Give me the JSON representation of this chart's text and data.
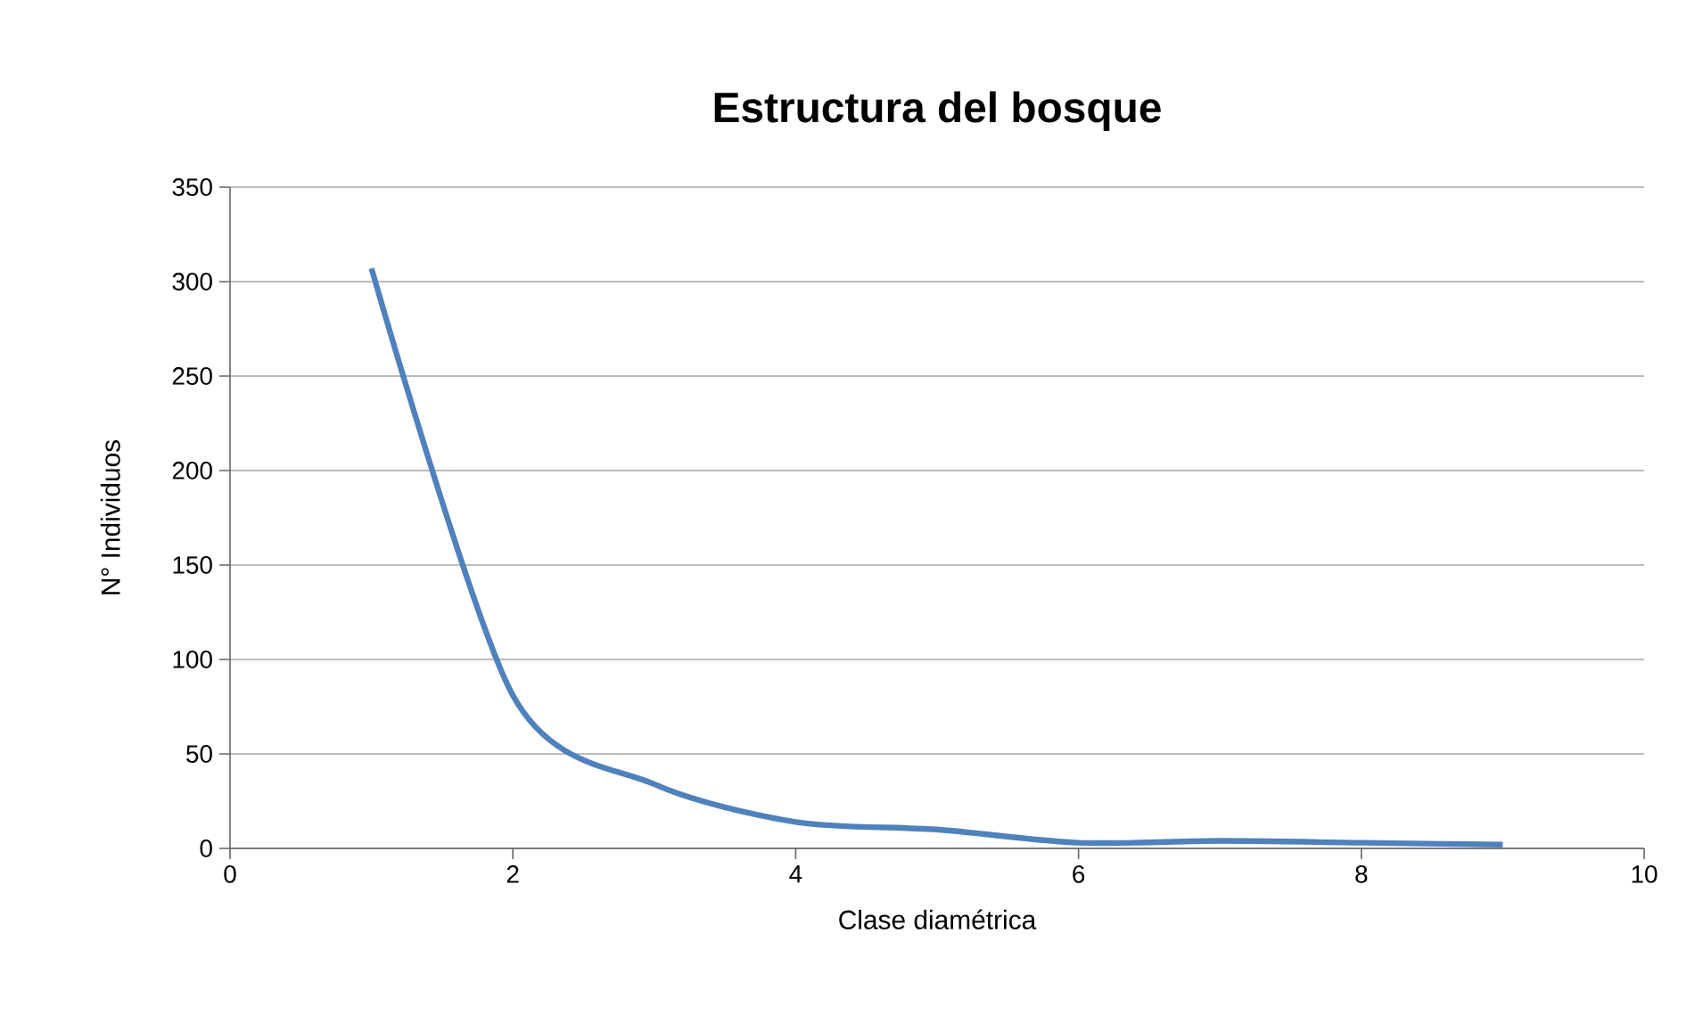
{
  "chart_data": {
    "type": "line",
    "title": "Estructura del bosque",
    "xlabel": "Clase diamétrica",
    "ylabel": "N° Individuos",
    "x": [
      1,
      2,
      3,
      4,
      5,
      6,
      7,
      8,
      9
    ],
    "series": [
      {
        "color": "#4f81bd",
        "values": [
          307,
          81,
          34,
          14,
          10,
          3,
          4,
          3,
          2
        ]
      }
    ],
    "xlim": [
      0,
      10
    ],
    "xticks": [
      0,
      2,
      4,
      6,
      8,
      10
    ],
    "ylim": [
      0,
      350
    ],
    "yticks": [
      0,
      50,
      100,
      150,
      200,
      250,
      300,
      350
    ],
    "grid": "y",
    "marker": "none",
    "line_style": "solid"
  }
}
